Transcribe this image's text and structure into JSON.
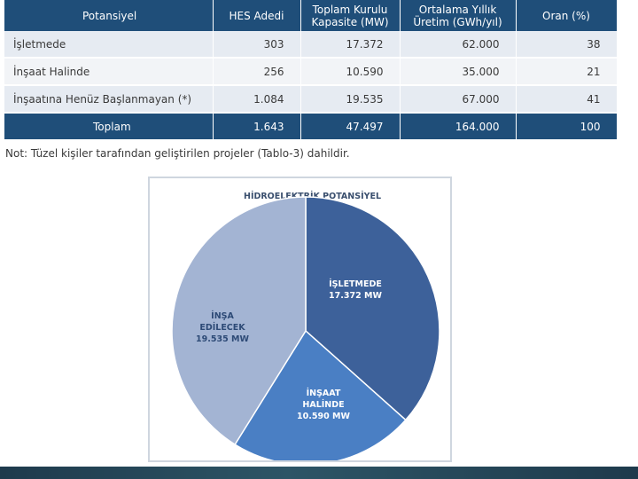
{
  "table": {
    "headers": [
      "Potansiyel",
      "HES Adedi",
      "Toplam Kurulu Kapasite (MW)",
      "Ortalama Yıllık Üretim (GWh/yıl)",
      "Oran (%)"
    ],
    "rows": [
      [
        "İşletmede",
        "303",
        "17.372",
        "62.000",
        "38"
      ],
      [
        "İnşaat Halinde",
        "256",
        "10.590",
        "35.000",
        "21"
      ],
      [
        "İnşaatına Henüz Başlanmayan (*)",
        "1.084",
        "19.535",
        "67.000",
        "41"
      ]
    ],
    "total": [
      "Toplam",
      "1.643",
      "47.497",
      "164.000",
      "100"
    ]
  },
  "note": "Not: Tüzel kişiler tarafından geliştirilen projeler (Tablo-3) dahildir.",
  "chart_data": {
    "type": "pie",
    "title": "HİDROELEKTRİK POTANSİYEL",
    "slices": [
      {
        "label": [
          "İŞLETMEDE",
          "17.372 MW"
        ],
        "value": 17372,
        "color": "#3d619a"
      },
      {
        "label": [
          "İNŞAAT",
          "HALİNDE",
          "10.590 MW"
        ],
        "value": 10590,
        "color": "#4a7fc4"
      },
      {
        "label": [
          "İNŞA",
          "EDİLECEK",
          "19.535 MW"
        ],
        "value": 19535,
        "color": "#a3b4d3"
      }
    ]
  }
}
